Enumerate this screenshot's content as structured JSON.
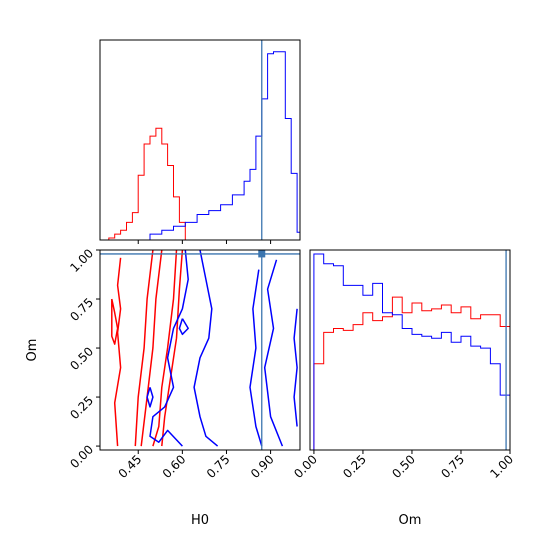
{
  "chart_data": [
    {
      "panel": "H0 marginal",
      "type": "step-histogram",
      "xlim": [
        0.32,
        1.0
      ],
      "truth_line": {
        "x": 0.87,
        "color": "#3b75af"
      },
      "series": [
        {
          "color": "#ff0000",
          "bin_edges": [
            0.35,
            0.37,
            0.39,
            0.41,
            0.43,
            0.45,
            0.47,
            0.49,
            0.51,
            0.53,
            0.55,
            0.57,
            0.59,
            0.61
          ],
          "counts": [
            0.01,
            0.03,
            0.05,
            0.09,
            0.14,
            0.33,
            0.49,
            0.53,
            0.57,
            0.49,
            0.38,
            0.22,
            0.09
          ]
        },
        {
          "color": "#0000ff",
          "bin_edges": [
            0.49,
            0.53,
            0.57,
            0.61,
            0.65,
            0.69,
            0.73,
            0.77,
            0.81,
            0.83,
            0.85,
            0.87,
            0.89,
            0.91,
            0.93,
            0.95,
            0.97,
            0.99,
            1.0
          ],
          "counts": [
            0.03,
            0.05,
            0.07,
            0.09,
            0.13,
            0.15,
            0.18,
            0.23,
            0.3,
            0.36,
            0.53,
            0.72,
            0.95,
            0.96,
            0.96,
            0.62,
            0.34,
            0.04
          ]
        }
      ]
    },
    {
      "panel": "Om vs H0 joint",
      "type": "contour",
      "xlabel": "H0",
      "ylabel": "Om",
      "xlim": [
        0.32,
        1.0
      ],
      "ylim": [
        -0.02,
        1.0
      ],
      "xticks": [
        "0.45",
        "0.60",
        "0.75",
        "0.90"
      ],
      "xtick_values": [
        0.45,
        0.6,
        0.75,
        0.9
      ],
      "yticks": [
        "0.00",
        "0.25",
        "0.50",
        "0.75",
        "1.00"
      ],
      "ytick_values": [
        0.0,
        0.25,
        0.5,
        0.75,
        1.0
      ],
      "truth": {
        "x": 0.87,
        "y": 0.98,
        "color": "#3b75af"
      },
      "contours": [
        {
          "color": "#ff0000",
          "points": [
            [
              0.39,
              0.96
            ],
            [
              0.38,
              0.82
            ],
            [
              0.39,
              0.7
            ],
            [
              0.38,
              0.58
            ],
            [
              0.39,
              0.4
            ],
            [
              0.37,
              0.22
            ],
            [
              0.38,
              0.0
            ]
          ]
        },
        {
          "color": "#ff0000",
          "points": [
            [
              0.36,
              0.75
            ],
            [
              0.37,
              0.68
            ],
            [
              0.38,
              0.6
            ],
            [
              0.37,
              0.52
            ],
            [
              0.36,
              0.56
            ],
            [
              0.36,
              0.7
            ],
            [
              0.36,
              0.75
            ]
          ]
        },
        {
          "color": "#ff0000",
          "points": [
            [
              0.5,
              1.0
            ],
            [
              0.48,
              0.75
            ],
            [
              0.47,
              0.5
            ],
            [
              0.45,
              0.25
            ],
            [
              0.44,
              0.0
            ]
          ]
        },
        {
          "color": "#ff0000",
          "points": [
            [
              0.53,
              1.0
            ],
            [
              0.51,
              0.75
            ],
            [
              0.5,
              0.5
            ],
            [
              0.48,
              0.25
            ],
            [
              0.46,
              0.0
            ]
          ]
        },
        {
          "color": "#ff0000",
          "points": [
            [
              0.58,
              1.0
            ],
            [
              0.57,
              0.75
            ],
            [
              0.55,
              0.5
            ],
            [
              0.53,
              0.3
            ],
            [
              0.52,
              0.1
            ],
            [
              0.5,
              0.0
            ]
          ]
        },
        {
          "color": "#ff0000",
          "points": [
            [
              0.6,
              1.0
            ],
            [
              0.59,
              0.8
            ],
            [
              0.58,
              0.55
            ],
            [
              0.56,
              0.35
            ],
            [
              0.54,
              0.15
            ],
            [
              0.53,
              0.0
            ]
          ]
        },
        {
          "color": "#0000ff",
          "points": [
            [
              0.61,
              1.0
            ],
            [
              0.62,
              0.85
            ],
            [
              0.6,
              0.7
            ],
            [
              0.57,
              0.6
            ],
            [
              0.55,
              0.45
            ],
            [
              0.57,
              0.3
            ],
            [
              0.54,
              0.2
            ],
            [
              0.5,
              0.15
            ],
            [
              0.49,
              0.05
            ],
            [
              0.52,
              0.02
            ],
            [
              0.55,
              0.08
            ],
            [
              0.6,
              0.0
            ]
          ]
        },
        {
          "color": "#0000ff",
          "points": [
            [
              0.66,
              1.0
            ],
            [
              0.68,
              0.85
            ],
            [
              0.7,
              0.7
            ],
            [
              0.69,
              0.55
            ],
            [
              0.66,
              0.45
            ],
            [
              0.64,
              0.3
            ],
            [
              0.66,
              0.15
            ],
            [
              0.68,
              0.05
            ],
            [
              0.72,
              0.0
            ]
          ]
        },
        {
          "color": "#0000ff",
          "points": [
            [
              0.49,
              0.3
            ],
            [
              0.5,
              0.25
            ],
            [
              0.49,
              0.2
            ],
            [
              0.48,
              0.25
            ],
            [
              0.49,
              0.3
            ]
          ]
        },
        {
          "color": "#0000ff",
          "points": [
            [
              0.6,
              0.65
            ],
            [
              0.62,
              0.6
            ],
            [
              0.6,
              0.57
            ],
            [
              0.59,
              0.6
            ],
            [
              0.6,
              0.65
            ]
          ]
        },
        {
          "color": "#0000ff",
          "points": [
            [
              0.92,
              0.95
            ],
            [
              0.89,
              0.8
            ],
            [
              0.91,
              0.6
            ],
            [
              0.88,
              0.4
            ],
            [
              0.9,
              0.15
            ],
            [
              0.94,
              0.0
            ]
          ]
        },
        {
          "color": "#0000ff",
          "points": [
            [
              0.86,
              0.9
            ],
            [
              0.84,
              0.7
            ],
            [
              0.85,
              0.5
            ],
            [
              0.83,
              0.3
            ],
            [
              0.85,
              0.1
            ],
            [
              0.87,
              0.0
            ]
          ]
        },
        {
          "color": "#0000ff",
          "points": [
            [
              0.99,
              0.7
            ],
            [
              0.98,
              0.55
            ],
            [
              0.99,
              0.4
            ],
            [
              0.98,
              0.25
            ],
            [
              0.99,
              0.1
            ]
          ]
        }
      ]
    },
    {
      "panel": "Om marginal",
      "type": "step-histogram",
      "xlabel": "Om",
      "xlim": [
        -0.02,
        1.0
      ],
      "xticks": [
        "0.00",
        "0.25",
        "0.50",
        "0.75",
        "1.00"
      ],
      "xtick_values": [
        0.0,
        0.25,
        0.5,
        0.75,
        1.0
      ],
      "truth_line": {
        "x": 0.98,
        "color": "#3b75af"
      },
      "series": [
        {
          "color": "#ff0000",
          "bin_edges": [
            0.0,
            0.05,
            0.1,
            0.15,
            0.2,
            0.25,
            0.3,
            0.35,
            0.4,
            0.45,
            0.5,
            0.55,
            0.6,
            0.65,
            0.7,
            0.75,
            0.8,
            0.85,
            0.9,
            0.95,
            1.0
          ],
          "counts": [
            0.44,
            0.6,
            0.62,
            0.61,
            0.64,
            0.7,
            0.66,
            0.68,
            0.78,
            0.7,
            0.75,
            0.71,
            0.72,
            0.74,
            0.7,
            0.73,
            0.67,
            0.69,
            0.69,
            0.63
          ]
        },
        {
          "color": "#0000ff",
          "bin_edges": [
            0.0,
            0.05,
            0.1,
            0.15,
            0.2,
            0.25,
            0.3,
            0.35,
            0.4,
            0.45,
            0.5,
            0.55,
            0.6,
            0.65,
            0.7,
            0.75,
            0.8,
            0.85,
            0.9,
            0.95,
            1.0
          ],
          "counts": [
            1.0,
            0.95,
            0.94,
            0.84,
            0.84,
            0.79,
            0.85,
            0.7,
            0.69,
            0.62,
            0.59,
            0.58,
            0.57,
            0.6,
            0.55,
            0.58,
            0.53,
            0.52,
            0.44,
            0.28
          ]
        }
      ]
    }
  ]
}
